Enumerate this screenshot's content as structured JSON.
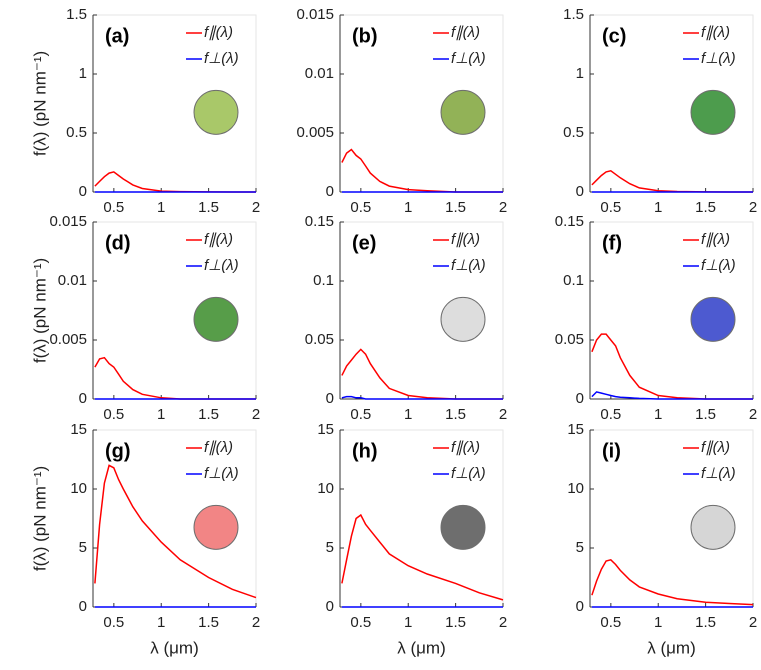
{
  "chart_data": [
    {
      "type": "line",
      "title": "(a)",
      "x": [
        0.3,
        0.35,
        0.4,
        0.45,
        0.5,
        0.55,
        0.6,
        0.7,
        0.8,
        1,
        1.2,
        1.5,
        1.75,
        2
      ],
      "xlim": [
        0.28,
        2
      ],
      "xticks": [
        0.5,
        1,
        1.5,
        2
      ],
      "ylim": [
        0,
        1.5
      ],
      "yticks": [
        0,
        0.5,
        1,
        1.5
      ],
      "ylabel": "f(λ) (pN nm⁻¹)",
      "series": [
        {
          "name": "f∥(λ)",
          "color": "#ff0000",
          "values": [
            0.05,
            0.09,
            0.13,
            0.16,
            0.17,
            0.14,
            0.11,
            0.06,
            0.03,
            0.008,
            0.003,
            0.001,
            0,
            0
          ]
        },
        {
          "name": "f⊥(λ)",
          "color": "#0000ff",
          "values": [
            0,
            0,
            0,
            0,
            0,
            0,
            0,
            0,
            0,
            0,
            0,
            0,
            0,
            0
          ]
        }
      ]
    },
    {
      "type": "line",
      "title": "(b)",
      "x": [
        0.3,
        0.35,
        0.4,
        0.45,
        0.5,
        0.55,
        0.6,
        0.7,
        0.8,
        1,
        1.2,
        1.5,
        1.75,
        2
      ],
      "xlim": [
        0.28,
        2
      ],
      "xticks": [
        0.5,
        1,
        1.5,
        2
      ],
      "ylim": [
        0,
        0.015
      ],
      "yticks": [
        0,
        0.005,
        0.01,
        0.015
      ],
      "series": [
        {
          "name": "f∥(λ)",
          "color": "#ff0000",
          "values": [
            0.0025,
            0.0033,
            0.0036,
            0.0031,
            0.0028,
            0.0022,
            0.0016,
            0.0009,
            0.0005,
            0.0002,
            0.0001,
            0,
            0,
            0
          ]
        },
        {
          "name": "f⊥(λ)",
          "color": "#0000ff",
          "values": [
            0,
            0,
            0,
            0,
            0,
            0,
            0,
            0,
            0,
            0,
            0,
            0,
            0,
            0
          ]
        }
      ]
    },
    {
      "type": "line",
      "title": "(c)",
      "x": [
        0.3,
        0.35,
        0.4,
        0.45,
        0.5,
        0.55,
        0.6,
        0.7,
        0.8,
        1,
        1.2,
        1.5,
        1.75,
        2
      ],
      "xlim": [
        0.28,
        2
      ],
      "xticks": [
        0.5,
        1,
        1.5,
        2
      ],
      "ylim": [
        0,
        1.5
      ],
      "yticks": [
        0,
        0.5,
        1,
        1.5
      ],
      "series": [
        {
          "name": "f∥(λ)",
          "color": "#ff0000",
          "values": [
            0.06,
            0.1,
            0.14,
            0.17,
            0.18,
            0.15,
            0.12,
            0.07,
            0.035,
            0.01,
            0.004,
            0.001,
            0,
            0
          ]
        },
        {
          "name": "f⊥(λ)",
          "color": "#0000ff",
          "values": [
            0,
            0,
            0,
            0,
            0,
            0,
            0,
            0,
            0,
            0,
            0,
            0,
            0,
            0
          ]
        }
      ]
    },
    {
      "type": "line",
      "title": "(d)",
      "x": [
        0.3,
        0.35,
        0.4,
        0.45,
        0.5,
        0.55,
        0.6,
        0.7,
        0.8,
        1,
        1.2,
        1.5,
        1.75,
        2
      ],
      "xlim": [
        0.28,
        2
      ],
      "xticks": [
        0.5,
        1,
        1.5,
        2
      ],
      "ylim": [
        0,
        0.015
      ],
      "yticks": [
        0,
        0.005,
        0.01,
        0.015
      ],
      "ylabel": "f(λ) (pN nm⁻¹)",
      "series": [
        {
          "name": "f∥(λ)",
          "color": "#ff0000",
          "values": [
            0.0027,
            0.0034,
            0.0035,
            0.003,
            0.0027,
            0.0021,
            0.0015,
            0.0008,
            0.0004,
            0.0001,
            0,
            0,
            0,
            0
          ]
        },
        {
          "name": "f⊥(λ)",
          "color": "#0000ff",
          "values": [
            0,
            0,
            0,
            0,
            0,
            0,
            0,
            0,
            0,
            0,
            0,
            0,
            0,
            0
          ]
        }
      ]
    },
    {
      "type": "line",
      "title": "(e)",
      "x": [
        0.3,
        0.35,
        0.4,
        0.45,
        0.5,
        0.55,
        0.6,
        0.7,
        0.8,
        1,
        1.2,
        1.5,
        1.75,
        2
      ],
      "xlim": [
        0.28,
        2
      ],
      "xticks": [
        0.5,
        1,
        1.5,
        2
      ],
      "ylim": [
        0,
        0.15
      ],
      "yticks": [
        0,
        0.05,
        0.1,
        0.15
      ],
      "series": [
        {
          "name": "f∥(λ)",
          "color": "#ff0000",
          "values": [
            0.02,
            0.028,
            0.033,
            0.038,
            0.042,
            0.038,
            0.03,
            0.018,
            0.009,
            0.003,
            0.001,
            0,
            0,
            0
          ]
        },
        {
          "name": "f⊥(λ)",
          "color": "#0000ff",
          "values": [
            0.001,
            0.002,
            0.002,
            0.001,
            0.001,
            0,
            0,
            0,
            0,
            0,
            0,
            0,
            0,
            0
          ]
        }
      ]
    },
    {
      "type": "line",
      "title": "(f)",
      "x": [
        0.3,
        0.35,
        0.4,
        0.45,
        0.5,
        0.55,
        0.6,
        0.7,
        0.8,
        1,
        1.2,
        1.5,
        1.75,
        2
      ],
      "xlim": [
        0.28,
        2
      ],
      "xticks": [
        0.5,
        1,
        1.5,
        2
      ],
      "ylim": [
        0,
        0.15
      ],
      "yticks": [
        0,
        0.05,
        0.1,
        0.15
      ],
      "series": [
        {
          "name": "f∥(λ)",
          "color": "#ff0000",
          "values": [
            0.04,
            0.05,
            0.055,
            0.055,
            0.05,
            0.045,
            0.035,
            0.02,
            0.01,
            0.003,
            0.001,
            0,
            0,
            0
          ]
        },
        {
          "name": "f⊥(λ)",
          "color": "#0000ff",
          "values": [
            0.002,
            0.006,
            0.005,
            0.004,
            0.003,
            0.002,
            0.0015,
            0.001,
            0.0005,
            0,
            0,
            0,
            0,
            0
          ]
        }
      ]
    },
    {
      "type": "line",
      "title": "(g)",
      "x": [
        0.3,
        0.35,
        0.4,
        0.45,
        0.5,
        0.55,
        0.6,
        0.7,
        0.8,
        1,
        1.2,
        1.5,
        1.75,
        2
      ],
      "xlim": [
        0.28,
        2
      ],
      "xticks": [
        0.5,
        1,
        1.5,
        2
      ],
      "ylim": [
        0,
        15
      ],
      "yticks": [
        0,
        5,
        10,
        15
      ],
      "ylabel": "f(λ) (pN nm⁻¹)",
      "xlabel": "λ (μm)",
      "series": [
        {
          "name": "f∥(λ)",
          "color": "#ff0000",
          "values": [
            2,
            7,
            10.5,
            12,
            11.8,
            10.8,
            10,
            8.5,
            7.3,
            5.5,
            4,
            2.5,
            1.5,
            0.8
          ]
        },
        {
          "name": "f⊥(λ)",
          "color": "#0000ff",
          "values": [
            0,
            0,
            0,
            0,
            0,
            0,
            0,
            0,
            0,
            0,
            0,
            0,
            0,
            0
          ]
        }
      ]
    },
    {
      "type": "line",
      "title": "(h)",
      "x": [
        0.3,
        0.35,
        0.4,
        0.45,
        0.5,
        0.55,
        0.6,
        0.7,
        0.8,
        1,
        1.2,
        1.5,
        1.75,
        2
      ],
      "xlim": [
        0.28,
        2
      ],
      "xticks": [
        0.5,
        1,
        1.5,
        2
      ],
      "ylim": [
        0,
        15
      ],
      "yticks": [
        0,
        5,
        10,
        15
      ],
      "xlabel": "λ (μm)",
      "series": [
        {
          "name": "f∥(λ)",
          "color": "#ff0000",
          "values": [
            2,
            4,
            6,
            7.5,
            7.8,
            7,
            6.5,
            5.5,
            4.5,
            3.5,
            2.8,
            2,
            1.2,
            0.6
          ]
        },
        {
          "name": "f⊥(λ)",
          "color": "#0000ff",
          "values": [
            0,
            0,
            0,
            0,
            0,
            0,
            0,
            0,
            0,
            0,
            0,
            0,
            0,
            0
          ]
        }
      ]
    },
    {
      "type": "line",
      "title": "(i)",
      "x": [
        0.3,
        0.35,
        0.4,
        0.45,
        0.5,
        0.55,
        0.6,
        0.7,
        0.8,
        1,
        1.2,
        1.5,
        1.75,
        2
      ],
      "xlim": [
        0.28,
        2
      ],
      "xticks": [
        0.5,
        1,
        1.5,
        2
      ],
      "ylim": [
        0,
        15
      ],
      "yticks": [
        0,
        5,
        10,
        15
      ],
      "xlabel": "λ (μm)",
      "series": [
        {
          "name": "f∥(λ)",
          "color": "#ff0000",
          "values": [
            1,
            2.2,
            3.2,
            3.9,
            4,
            3.6,
            3.1,
            2.3,
            1.7,
            1.1,
            0.7,
            0.4,
            0.3,
            0.2
          ]
        },
        {
          "name": "f⊥(λ)",
          "color": "#0000ff",
          "values": [
            0,
            0,
            0,
            0,
            0,
            0,
            0,
            0,
            0,
            0,
            0,
            0,
            0,
            0
          ]
        }
      ]
    }
  ]
}
